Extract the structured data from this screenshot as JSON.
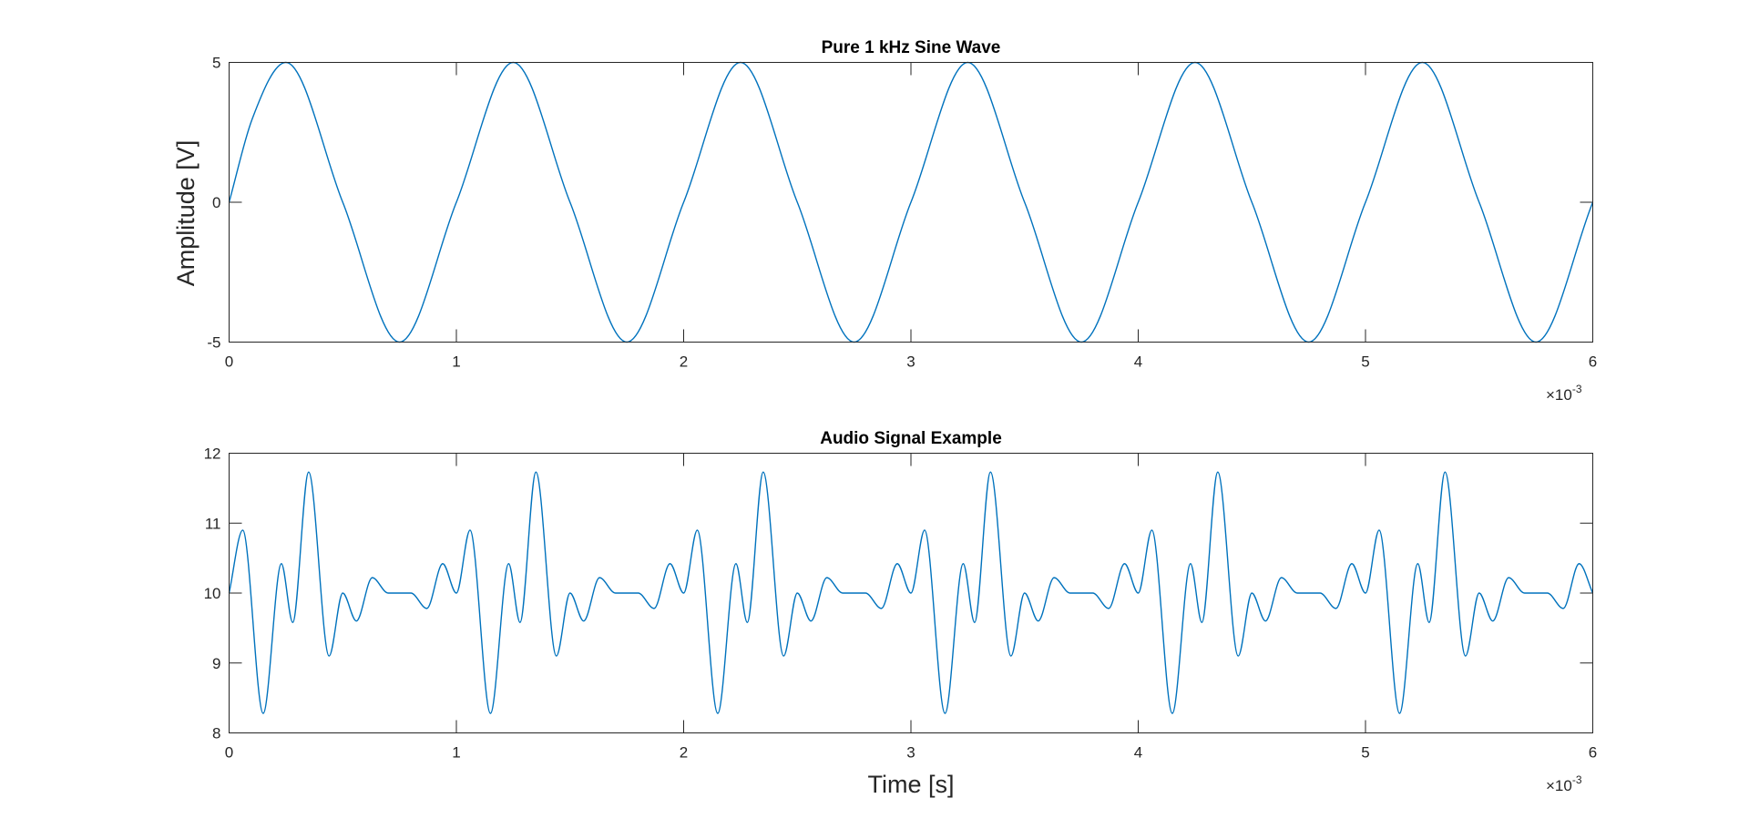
{
  "chart_data": [
    {
      "type": "line",
      "title": "Pure 1 kHz Sine Wave",
      "xlabel": "",
      "ylabel": "Amplitude [V]",
      "xlim": [
        0,
        0.006
      ],
      "ylim": [
        -5,
        5
      ],
      "x_ticks": [
        0,
        1,
        2,
        3,
        4,
        5,
        6
      ],
      "y_ticks": [
        5,
        0,
        -5
      ],
      "x_exponent": "×10",
      "x_exponent_power": "-3",
      "grid": false,
      "series": [
        {
          "color": "#0072BD",
          "x": [
            0,
            0.0001,
            0.00025,
            0.0005,
            0.00075,
            0.001,
            0.00125,
            0.0015,
            0.00175,
            0.002,
            0.00225,
            0.0025,
            0.00275,
            0.003,
            0.00325,
            0.0035,
            0.00375,
            0.004,
            0.00425,
            0.0045,
            0.00475,
            0.005,
            0.00525,
            0.0055,
            0.00575,
            0.006
          ],
          "y": [
            0,
            2.94,
            5,
            0,
            -5,
            0,
            5,
            0,
            -5,
            0,
            5,
            0,
            -5,
            0,
            5,
            0,
            -5,
            0,
            5,
            0,
            -5,
            0,
            5,
            0,
            -5,
            0
          ]
        }
      ]
    },
    {
      "type": "line",
      "title": "Audio Signal Example",
      "xlabel": "Time [s]",
      "ylabel": "",
      "xlim": [
        0,
        0.006
      ],
      "ylim": [
        8,
        12
      ],
      "x_ticks": [
        0,
        1,
        2,
        3,
        4,
        5,
        6
      ],
      "y_ticks": [
        12,
        11,
        10,
        9,
        8
      ],
      "x_exponent": "×10",
      "x_exponent_power": "-3",
      "grid": false,
      "period": 0.001,
      "series": [
        {
          "color": "#0072BD",
          "x": [
            0,
            6e-05,
            0.00015,
            0.00023,
            0.00028,
            0.00035,
            0.00044,
            0.0005,
            0.00056,
            0.00063,
            0.0007,
            0.0008,
            0.00087,
            0.00094,
            0.001
          ],
          "y": [
            10,
            10.9,
            8.28,
            10.42,
            9.58,
            11.73,
            9.1,
            10,
            9.6,
            10.22,
            10,
            10,
            9.78,
            10.42,
            10
          ]
        }
      ]
    }
  ]
}
